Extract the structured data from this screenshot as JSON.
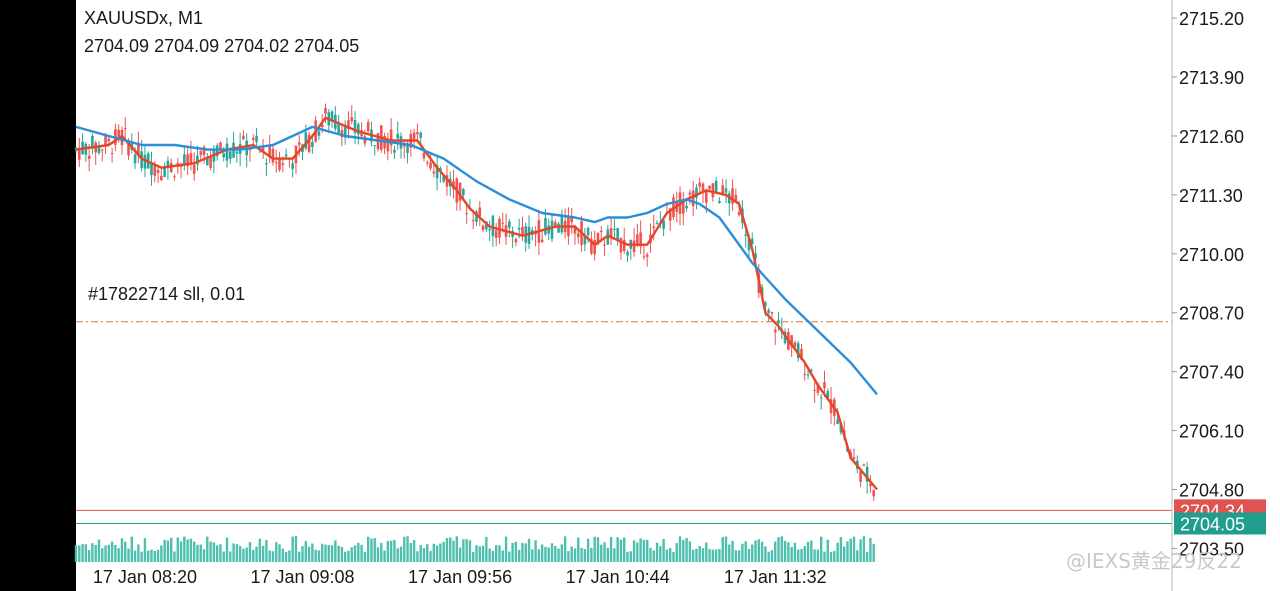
{
  "header": {
    "symbol_timeframe": "XAUUSDx, M1",
    "ohlc": "2704.09 2704.09 2704.02 2704.05"
  },
  "order_line": {
    "label": "#17822714 sll, 0.01",
    "price": 2708.5,
    "color": "#e0743f"
  },
  "watermark": "@IEXS黄金29反22",
  "colors": {
    "bull_candle": "#26a69a",
    "bear_candle": "#ef5350",
    "ma_fast": "#e2462b",
    "ma_slow": "#2a8fd8",
    "bid_line": "#e05353",
    "ask_line": "#1f9e8e",
    "volume": "#4dbfae"
  },
  "chart_data": {
    "type": "line",
    "title": "XAUUSDx, M1",
    "xlabel": "",
    "ylabel": "",
    "ylim": [
      2703.2,
      2715.6
    ],
    "grid": false,
    "y_ticks": [
      "2715.20",
      "2713.90",
      "2712.60",
      "2711.30",
      "2710.00",
      "2708.70",
      "2707.40",
      "2706.10",
      "2704.80",
      "2703.50"
    ],
    "x_tick_labels": [
      "17 Jan 08:20",
      "17 Jan 09:08",
      "17 Jan 09:56",
      "17 Jan 10:44",
      "17 Jan 11:32"
    ],
    "x_range": [
      "07:59",
      "12:03"
    ],
    "series": [
      {
        "kind": "moving-average-fast",
        "x": [
          "07:59",
          "08:09",
          "08:13",
          "08:19",
          "08:25",
          "08:35",
          "08:45",
          "08:53",
          "08:59",
          "09:05",
          "09:11",
          "09:15",
          "09:25",
          "09:35",
          "09:43",
          "09:49",
          "09:55",
          "09:59",
          "10:05",
          "10:15",
          "10:25",
          "10:31",
          "10:37",
          "10:41",
          "10:47",
          "10:53",
          "10:59",
          "11:05",
          "11:11",
          "11:17",
          "11:21",
          "11:25",
          "11:29",
          "11:33",
          "11:37",
          "11:41",
          "11:45",
          "11:51",
          "11:55",
          "12:03"
        ],
        "values": [
          2712.3,
          2712.4,
          2712.6,
          2712.1,
          2711.9,
          2712.0,
          2712.3,
          2712.4,
          2712.1,
          2712.1,
          2712.6,
          2713.0,
          2712.7,
          2712.5,
          2712.5,
          2711.9,
          2711.4,
          2711.0,
          2710.6,
          2710.4,
          2710.6,
          2710.6,
          2710.2,
          2710.4,
          2710.2,
          2710.2,
          2710.9,
          2711.2,
          2711.4,
          2711.3,
          2711.1,
          2710.1,
          2708.7,
          2708.4,
          2708.0,
          2707.6,
          2707.1,
          2706.5,
          2705.5,
          2704.8
        ]
      },
      {
        "kind": "moving-average-slow",
        "x": [
          "07:59",
          "08:09",
          "08:19",
          "08:29",
          "08:39",
          "08:49",
          "08:59",
          "09:11",
          "09:21",
          "09:31",
          "09:41",
          "09:51",
          "10:01",
          "10:11",
          "10:21",
          "10:31",
          "10:37",
          "10:41",
          "10:47",
          "10:53",
          "10:59",
          "11:05",
          "11:09",
          "11:15",
          "11:25",
          "11:35",
          "11:45",
          "11:55",
          "12:03"
        ],
        "values": [
          2712.8,
          2712.6,
          2712.4,
          2712.4,
          2712.3,
          2712.3,
          2712.4,
          2712.8,
          2712.6,
          2712.5,
          2712.4,
          2712.1,
          2711.6,
          2711.2,
          2710.9,
          2710.8,
          2710.7,
          2710.8,
          2710.8,
          2710.9,
          2711.1,
          2711.2,
          2711.1,
          2710.8,
          2709.8,
          2709.0,
          2708.3,
          2707.6,
          2706.9
        ]
      }
    ],
    "current_bid": "2704.34",
    "current_ask": "2704.05"
  }
}
